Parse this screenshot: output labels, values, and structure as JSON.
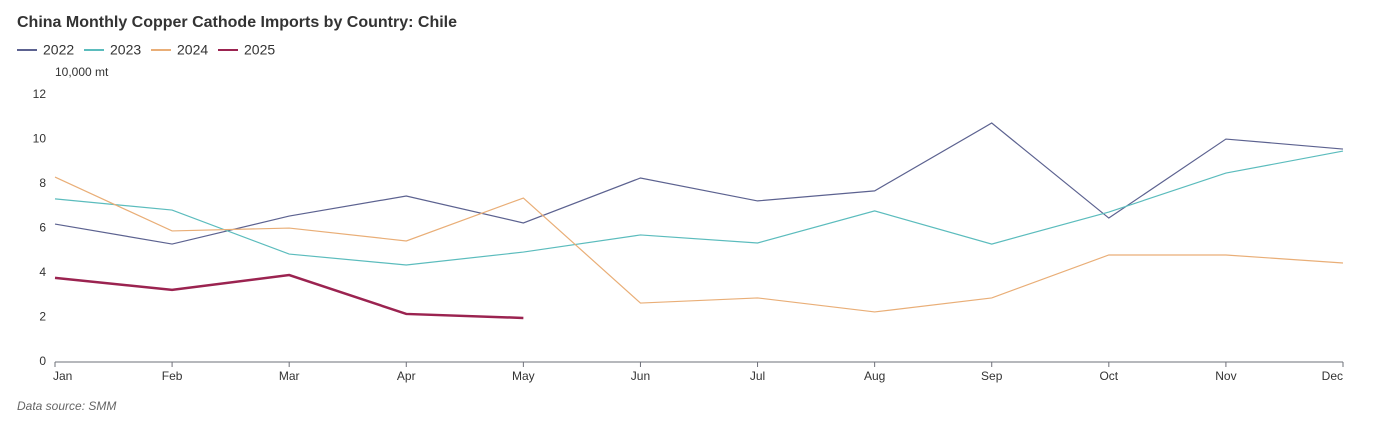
{
  "chart_data": {
    "type": "line",
    "title": "China Monthly Copper Cathode Imports by Country: Chile",
    "y_axis_label": "10,000 mt",
    "source": "Data source:  SMM",
    "categories": [
      "Jan",
      "Feb",
      "Mar",
      "Apr",
      "May",
      "Jun",
      "Jul",
      "Aug",
      "Sep",
      "Oct",
      "Nov",
      "Dec"
    ],
    "series": [
      {
        "name": "2022",
        "color": "#5c6290",
        "values": [
          6.2,
          5.3,
          6.56,
          7.46,
          6.25,
          8.27,
          7.24,
          7.69,
          10.74,
          6.47,
          10.02,
          9.57
        ]
      },
      {
        "name": "2023",
        "color": "#5bbcbd",
        "values": [
          7.33,
          6.83,
          4.85,
          4.36,
          4.94,
          5.71,
          5.35,
          6.79,
          5.3,
          6.74,
          8.49,
          9.48
        ]
      },
      {
        "name": "2024",
        "color": "#e9ae77",
        "values": [
          8.31,
          5.89,
          6.02,
          5.44,
          7.37,
          2.65,
          2.88,
          2.25,
          2.88,
          4.81,
          4.81,
          4.45
        ]
      },
      {
        "name": "2025",
        "color": "#9b2350",
        "values": [
          3.78,
          3.24,
          3.91,
          2.16,
          1.98,
          null,
          null,
          null,
          null,
          null,
          null,
          null
        ]
      }
    ],
    "ylim": [
      0,
      12
    ],
    "yticks": [
      0,
      2,
      4,
      6,
      8,
      10,
      12
    ],
    "grid": false
  }
}
